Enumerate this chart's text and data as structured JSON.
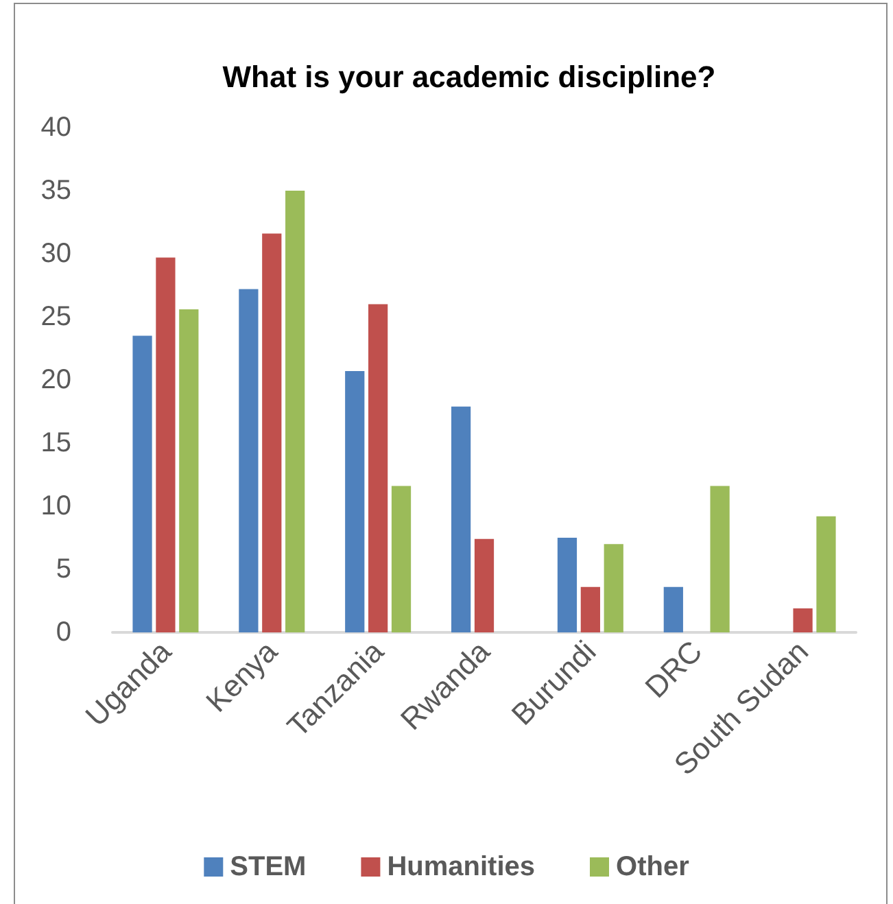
{
  "chart_data": {
    "type": "bar",
    "title": "What is your academic discipline?",
    "categories": [
      "Uganda",
      "Kenya",
      "Tanzania",
      "Rwanda",
      "Burundi",
      "DRC",
      "South Sudan"
    ],
    "series": [
      {
        "name": "STEM",
        "color": "#4f81bd",
        "values": [
          23.5,
          27.2,
          20.7,
          17.9,
          7.5,
          3.6,
          0
        ]
      },
      {
        "name": "Humanities",
        "color": "#c0504d",
        "values": [
          29.7,
          31.6,
          26.0,
          7.4,
          3.6,
          0,
          1.9
        ]
      },
      {
        "name": "Other",
        "color": "#9bbb59",
        "values": [
          25.6,
          35.0,
          11.6,
          0,
          7.0,
          11.6,
          9.2
        ]
      }
    ],
    "ylim": [
      0,
      40
    ],
    "yticks": [
      0,
      5,
      10,
      15,
      20,
      25,
      30,
      35,
      40
    ],
    "grid": false,
    "legend": "bottom"
  }
}
